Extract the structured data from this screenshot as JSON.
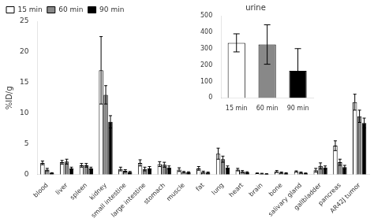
{
  "chart_data": [
    {
      "type": "bar",
      "categories": [
        "blood",
        "liver",
        "spleen",
        "kidney",
        "small intestine",
        "large intestine",
        "stomach",
        "muscle",
        "fat",
        "lung",
        "heart",
        "brain",
        "bone",
        "salivary gland",
        "gallbladder",
        "pancreas",
        "AR42J tumor"
      ],
      "series": [
        {
          "name": "15 min",
          "color": "white",
          "values": [
            1.9,
            2.0,
            1.5,
            17.0,
            0.9,
            1.9,
            1.7,
            0.8,
            1.0,
            3.4,
            0.8,
            0.2,
            0.5,
            0.5,
            0.7,
            4.7,
            11.8
          ],
          "errors": [
            0.3,
            0.3,
            0.3,
            5.5,
            0.3,
            0.5,
            0.4,
            0.3,
            0.3,
            0.9,
            0.2,
            0.05,
            0.15,
            0.1,
            0.3,
            0.8,
            1.3
          ]
        },
        {
          "name": "60 min",
          "color": "#888888",
          "values": [
            0.8,
            2.1,
            1.5,
            13.0,
            0.6,
            0.9,
            1.6,
            0.4,
            0.4,
            2.5,
            0.5,
            0.15,
            0.3,
            0.3,
            1.4,
            2.0,
            9.5
          ],
          "errors": [
            0.2,
            0.4,
            0.3,
            1.5,
            0.2,
            0.3,
            0.4,
            0.1,
            0.15,
            0.5,
            0.15,
            0.05,
            0.1,
            0.1,
            0.5,
            0.5,
            1.0
          ]
        },
        {
          "name": "90 min",
          "color": "black",
          "values": [
            0.25,
            1.0,
            1.0,
            8.6,
            0.4,
            1.0,
            1.1,
            0.35,
            0.3,
            1.1,
            0.35,
            0.1,
            0.2,
            0.2,
            1.1,
            1.2,
            8.4
          ],
          "errors": [
            0.05,
            0.2,
            0.2,
            1.0,
            0.1,
            0.3,
            0.3,
            0.1,
            0.1,
            0.3,
            0.1,
            0.03,
            0.08,
            0.05,
            0.3,
            0.3,
            0.8
          ]
        }
      ],
      "ylabel": "%ID/g",
      "ylim": [
        0,
        25
      ],
      "yticks": [
        0,
        5,
        10,
        15,
        20,
        25
      ],
      "legend": "upper left",
      "grid": false
    },
    {
      "type": "bar",
      "title": "urine",
      "categories": [
        "15 min",
        "60 min",
        "90 min"
      ],
      "values": [
        335,
        325,
        165
      ],
      "errors": [
        55,
        120,
        135
      ],
      "colors": [
        "white",
        "#888888",
        "black"
      ],
      "ylim": [
        0,
        500
      ],
      "yticks": [
        0,
        100,
        200,
        300,
        400,
        500
      ],
      "grid": false
    }
  ]
}
